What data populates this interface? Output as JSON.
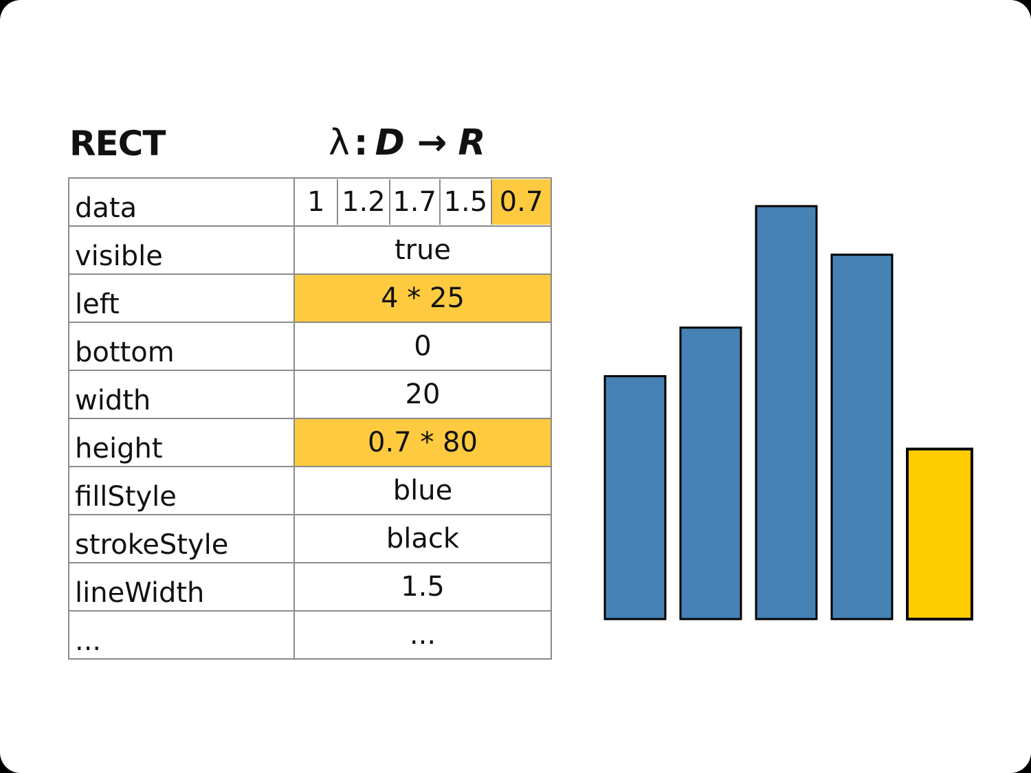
{
  "title": "RECT",
  "formula": {
    "lambda": "λ",
    "colon": ":",
    "domain": "D",
    "arrow": "→",
    "range": "R"
  },
  "colors": {
    "highlight": "#fdca40",
    "bar_blue": "#4682b4",
    "bar_highlight": "#ffcc00",
    "stroke": "#000000"
  },
  "properties": [
    {
      "name": "data",
      "value": "",
      "highlight": false
    },
    {
      "name": "visible",
      "value": "true",
      "highlight": false
    },
    {
      "name": "left",
      "value": "4 * 25",
      "highlight": true
    },
    {
      "name": "bottom",
      "value": "0",
      "highlight": false
    },
    {
      "name": "width",
      "value": "20",
      "highlight": false
    },
    {
      "name": "height",
      "value": "0.7 * 80",
      "highlight": true
    },
    {
      "name": "fillStyle",
      "value": "blue",
      "highlight": false
    },
    {
      "name": "strokeStyle",
      "value": "black",
      "highlight": false
    },
    {
      "name": "lineWidth",
      "value": "1.5",
      "highlight": false
    },
    {
      "name": "...",
      "value": "...",
      "highlight": false
    }
  ],
  "data_values": [
    {
      "label": "1",
      "highlight": false
    },
    {
      "label": "1.2",
      "highlight": false
    },
    {
      "label": "1.7",
      "highlight": false
    },
    {
      "label": "1.5",
      "highlight": false
    },
    {
      "label": "0.7",
      "highlight": true
    }
  ],
  "chart_data": {
    "type": "bar",
    "values": [
      1,
      1.2,
      1.7,
      1.5,
      0.7
    ],
    "highlight_index": 4,
    "ylim": [
      0,
      1.7
    ],
    "grid": false,
    "title": "",
    "xlabel": "",
    "ylabel": ""
  }
}
